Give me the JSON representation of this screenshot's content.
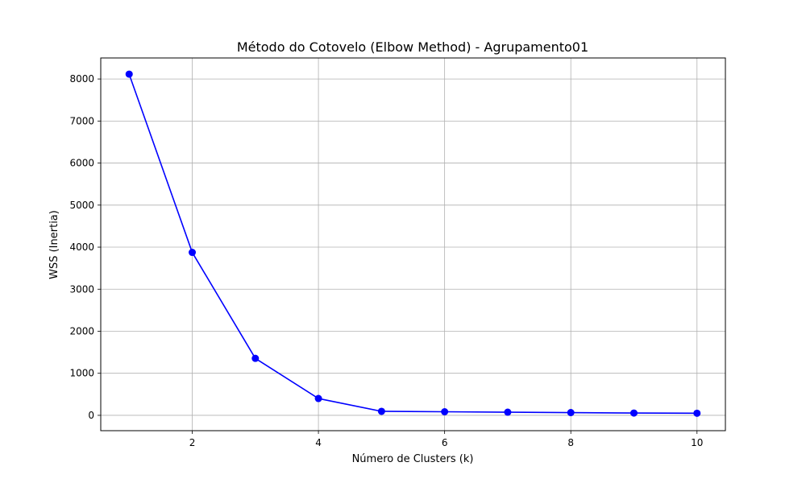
{
  "chart_data": {
    "type": "line",
    "title": "Método do Cotovelo (Elbow Method) - Agrupamento01",
    "xlabel": "Número de Clusters (k)",
    "ylabel": "WSS (Inertia)",
    "x": [
      1,
      2,
      3,
      4,
      5,
      6,
      7,
      8,
      9,
      10
    ],
    "series": [
      {
        "name": "WSS",
        "values": [
          8115,
          3875,
          1355,
          400,
          95,
          85,
          75,
          65,
          55,
          50
        ],
        "color": "#0000ff",
        "marker": "circle"
      }
    ],
    "xlim": [
      0.55,
      10.45
    ],
    "ylim": [
      -365,
      8500
    ],
    "xticks": [
      2,
      4,
      6,
      8,
      10
    ],
    "yticks": [
      0,
      1000,
      2000,
      3000,
      4000,
      5000,
      6000,
      7000,
      8000
    ],
    "grid": true,
    "grid_color": "#b0b0b0"
  }
}
